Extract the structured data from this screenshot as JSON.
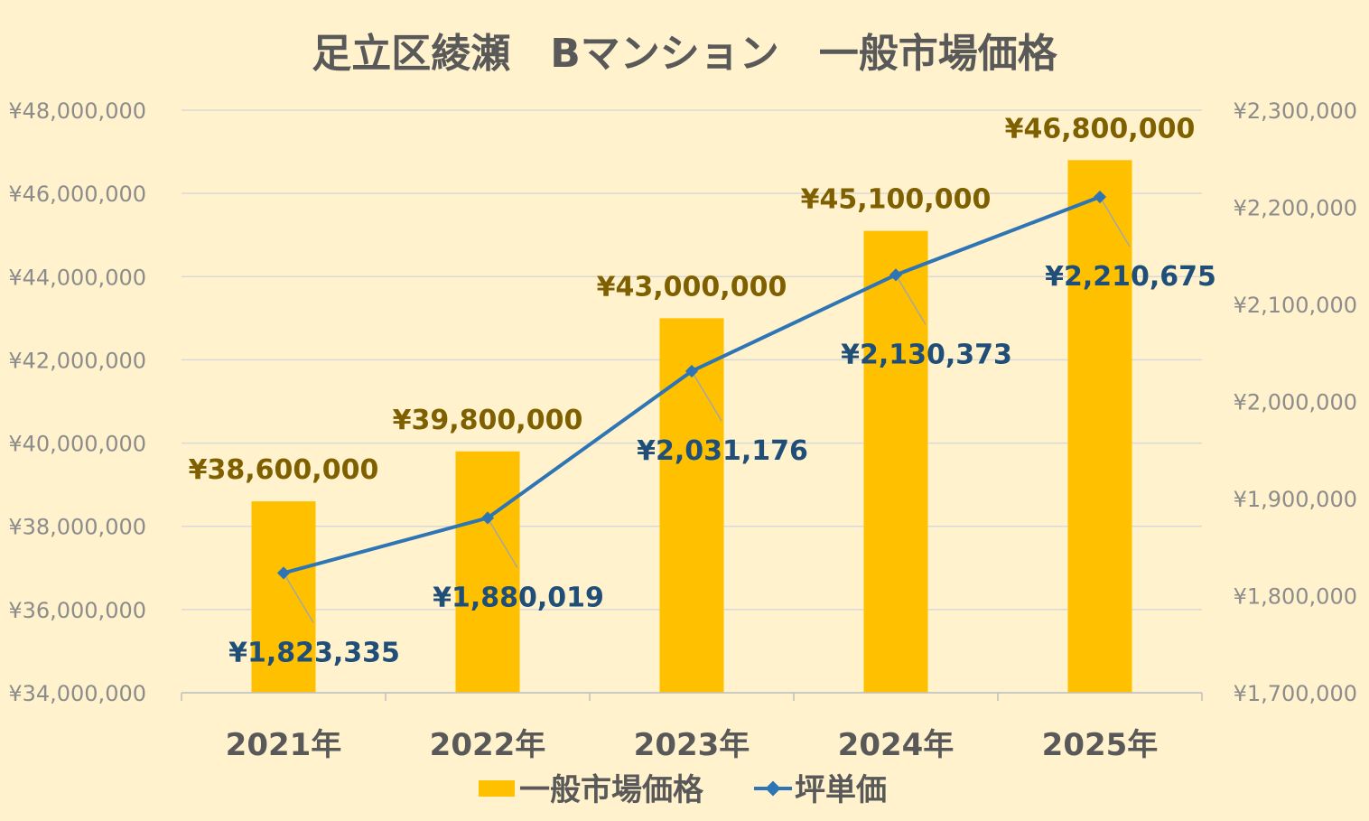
{
  "chart_data": {
    "type": "bar",
    "title": "足立区綾瀬　Bマンション　一般市場価格",
    "categories": [
      "2021年",
      "2022年",
      "2023年",
      "2024年",
      "2025年"
    ],
    "series": [
      {
        "name": "一般市場価格",
        "type": "bar",
        "axis": "left",
        "color": "#ffc000",
        "values": [
          38600000,
          39800000,
          43000000,
          45100000,
          46800000
        ],
        "labels": [
          "¥38,600,000",
          "¥39,800,000",
          "¥43,000,000",
          "¥45,100,000",
          "¥46,800,000"
        ]
      },
      {
        "name": "坪単価",
        "type": "line",
        "axis": "right",
        "color": "#2e75b6",
        "values": [
          1823335,
          1880019,
          2031176,
          2130373,
          2210675
        ],
        "labels": [
          "¥1,823,335",
          "¥1,880,019",
          "¥2,031,176",
          "¥2,130,373",
          "¥2,210,675"
        ]
      }
    ],
    "y_left": {
      "ylim": [
        34000000,
        48000000
      ],
      "ticks": [
        "¥34,000,000",
        "¥36,000,000",
        "¥38,000,000",
        "¥40,000,000",
        "¥42,000,000",
        "¥44,000,000",
        "¥46,000,000",
        "¥48,000,000"
      ]
    },
    "y_right": {
      "ylim": [
        1700000,
        2300000
      ],
      "ticks": [
        "¥1,700,000",
        "¥1,800,000",
        "¥1,900,000",
        "¥2,000,000",
        "¥2,100,000",
        "¥2,200,000",
        "¥2,300,000"
      ]
    },
    "grid": true,
    "legend": "bottom",
    "background": "#fff2cc"
  }
}
